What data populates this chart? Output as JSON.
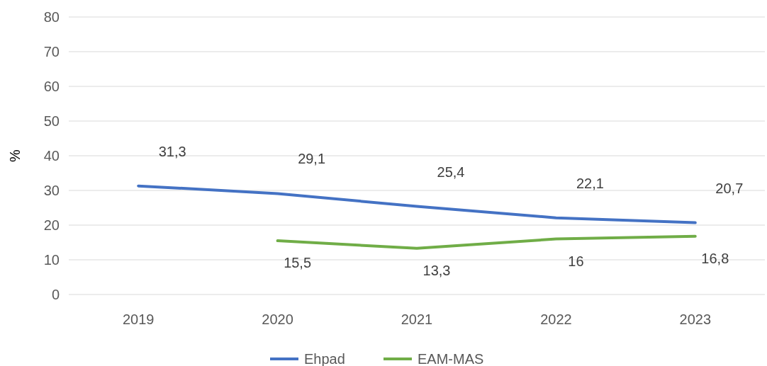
{
  "chart_data": {
    "type": "line",
    "ylabel": "%",
    "categories": [
      "2019",
      "2020",
      "2021",
      "2022",
      "2023"
    ],
    "series": [
      {
        "name": "Ehpad",
        "color": "#4472c4",
        "values": [
          31.3,
          29.1,
          25.4,
          22.1,
          20.7
        ],
        "value_labels": [
          "31,3",
          "29,1",
          "25,4",
          "22,1",
          "20,7"
        ]
      },
      {
        "name": "EAM-MAS",
        "color": "#70ad47",
        "values": [
          null,
          15.5,
          13.3,
          16,
          16.8
        ],
        "value_labels": [
          null,
          "15,5",
          "13,3",
          "16",
          "16,8"
        ]
      }
    ],
    "ylim": [
      0,
      80
    ],
    "yticks": [
      0,
      10,
      20,
      30,
      40,
      50,
      60,
      70,
      80
    ],
    "grid": "y",
    "legend": "bottom",
    "marker": "none",
    "line_style": "solid"
  }
}
